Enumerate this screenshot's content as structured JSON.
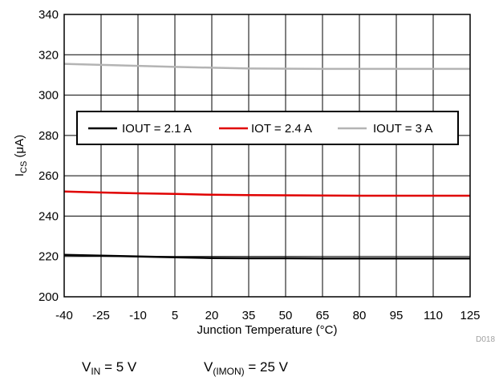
{
  "chart_data": {
    "type": "line",
    "x": [
      -40,
      -25,
      -10,
      5,
      20,
      35,
      50,
      65,
      80,
      95,
      110,
      125
    ],
    "xlim": [
      -40,
      125
    ],
    "ylim": [
      200,
      340
    ],
    "x_ticks": [
      "-40",
      "-25",
      "-10",
      "5",
      "20",
      "35",
      "50",
      "65",
      "80",
      "95",
      "110",
      "125"
    ],
    "y_ticks": [
      "200",
      "220",
      "240",
      "260",
      "280",
      "300",
      "320",
      "340"
    ],
    "xlabel": "Junction Temperature (°C)",
    "ylabel_main": "I",
    "ylabel_sub": "CS",
    "ylabel_unit": " (μA)",
    "grid": true,
    "legend_position": "center, inside plot",
    "series": [
      {
        "name": "IOUT = 2.1 A",
        "color": "#000000",
        "values": [
          220.8,
          220.4,
          220,
          219.6,
          219.2,
          219.1,
          219.1,
          219,
          219,
          219,
          219,
          219
        ]
      },
      {
        "name": "IOT = 2.4 A",
        "color": "#e00000",
        "values": [
          252.2,
          251.7,
          251.3,
          251,
          250.6,
          250.4,
          250.3,
          250.2,
          250.1,
          250.1,
          250.1,
          250.1
        ]
      },
      {
        "name": "IOUT = 3 A",
        "color": "#b4b4b4",
        "values": [
          315.5,
          315,
          314.5,
          314,
          313.6,
          313.2,
          313.1,
          313,
          313,
          313,
          313,
          313
        ]
      }
    ]
  },
  "figure_code": "D018",
  "conditions": {
    "vin_main": "V",
    "vin_sub": "IN",
    "vin_value": " = 5 V",
    "vimon_main": "V",
    "vimon_sub": "(IMON)",
    "vimon_value": " = 25 V"
  }
}
